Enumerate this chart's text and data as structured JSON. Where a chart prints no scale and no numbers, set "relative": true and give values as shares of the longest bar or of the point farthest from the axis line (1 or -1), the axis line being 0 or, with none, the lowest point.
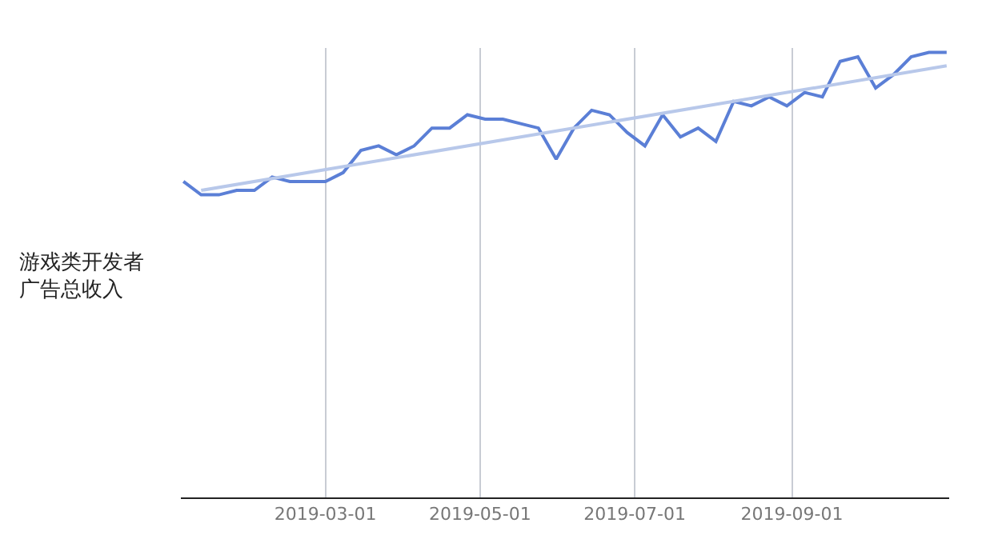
{
  "chart_data": {
    "type": "line",
    "relative": true,
    "ylabel": "游戏类开发者广告总收入",
    "x": [
      "2019-01-04",
      "2019-01-11",
      "2019-01-18",
      "2019-01-25",
      "2019-02-01",
      "2019-02-08",
      "2019-02-15",
      "2019-02-22",
      "2019-03-01",
      "2019-03-08",
      "2019-03-15",
      "2019-03-22",
      "2019-03-29",
      "2019-04-05",
      "2019-04-12",
      "2019-04-19",
      "2019-04-26",
      "2019-05-03",
      "2019-05-10",
      "2019-05-17",
      "2019-05-24",
      "2019-05-31",
      "2019-06-07",
      "2019-06-14",
      "2019-06-21",
      "2019-06-28",
      "2019-07-05",
      "2019-07-12",
      "2019-07-19",
      "2019-07-26",
      "2019-08-02",
      "2019-08-09",
      "2019-08-16",
      "2019-08-23",
      "2019-08-30",
      "2019-09-06",
      "2019-09-13",
      "2019-09-20",
      "2019-09-27",
      "2019-10-04",
      "2019-10-11",
      "2019-10-18",
      "2019-10-25",
      "2019-11-01"
    ],
    "series": [
      {
        "color": "#5b7fd6",
        "values": [
          0.71,
          0.68,
          0.68,
          0.69,
          0.69,
          0.72,
          0.71,
          0.71,
          0.71,
          0.73,
          0.78,
          0.79,
          0.77,
          0.79,
          0.83,
          0.83,
          0.86,
          0.85,
          0.85,
          0.84,
          0.83,
          0.76,
          0.83,
          0.87,
          0.86,
          0.82,
          0.79,
          0.86,
          0.81,
          0.83,
          0.8,
          0.89,
          0.88,
          0.9,
          0.88,
          0.91,
          0.9,
          0.98,
          0.99,
          0.92,
          0.95,
          0.99,
          1.0,
          1.0
        ]
      },
      {
        "color": "#b8c8ea",
        "x": [
          "2019-01-11",
          "2019-11-01"
        ],
        "values": [
          0.69,
          0.97
        ]
      }
    ],
    "xlim": [
      "2019-01-03",
      "2019-11-02"
    ],
    "xticks": [
      {
        "value": "2019-03-01",
        "label": "2019-03-01"
      },
      {
        "value": "2019-05-01",
        "label": "2019-05-01"
      },
      {
        "value": "2019-07-01",
        "label": "2019-07-01"
      },
      {
        "value": "2019-09-01",
        "label": "2019-09-01"
      }
    ],
    "grid": "x",
    "marker": "none",
    "line_style": "solid"
  }
}
